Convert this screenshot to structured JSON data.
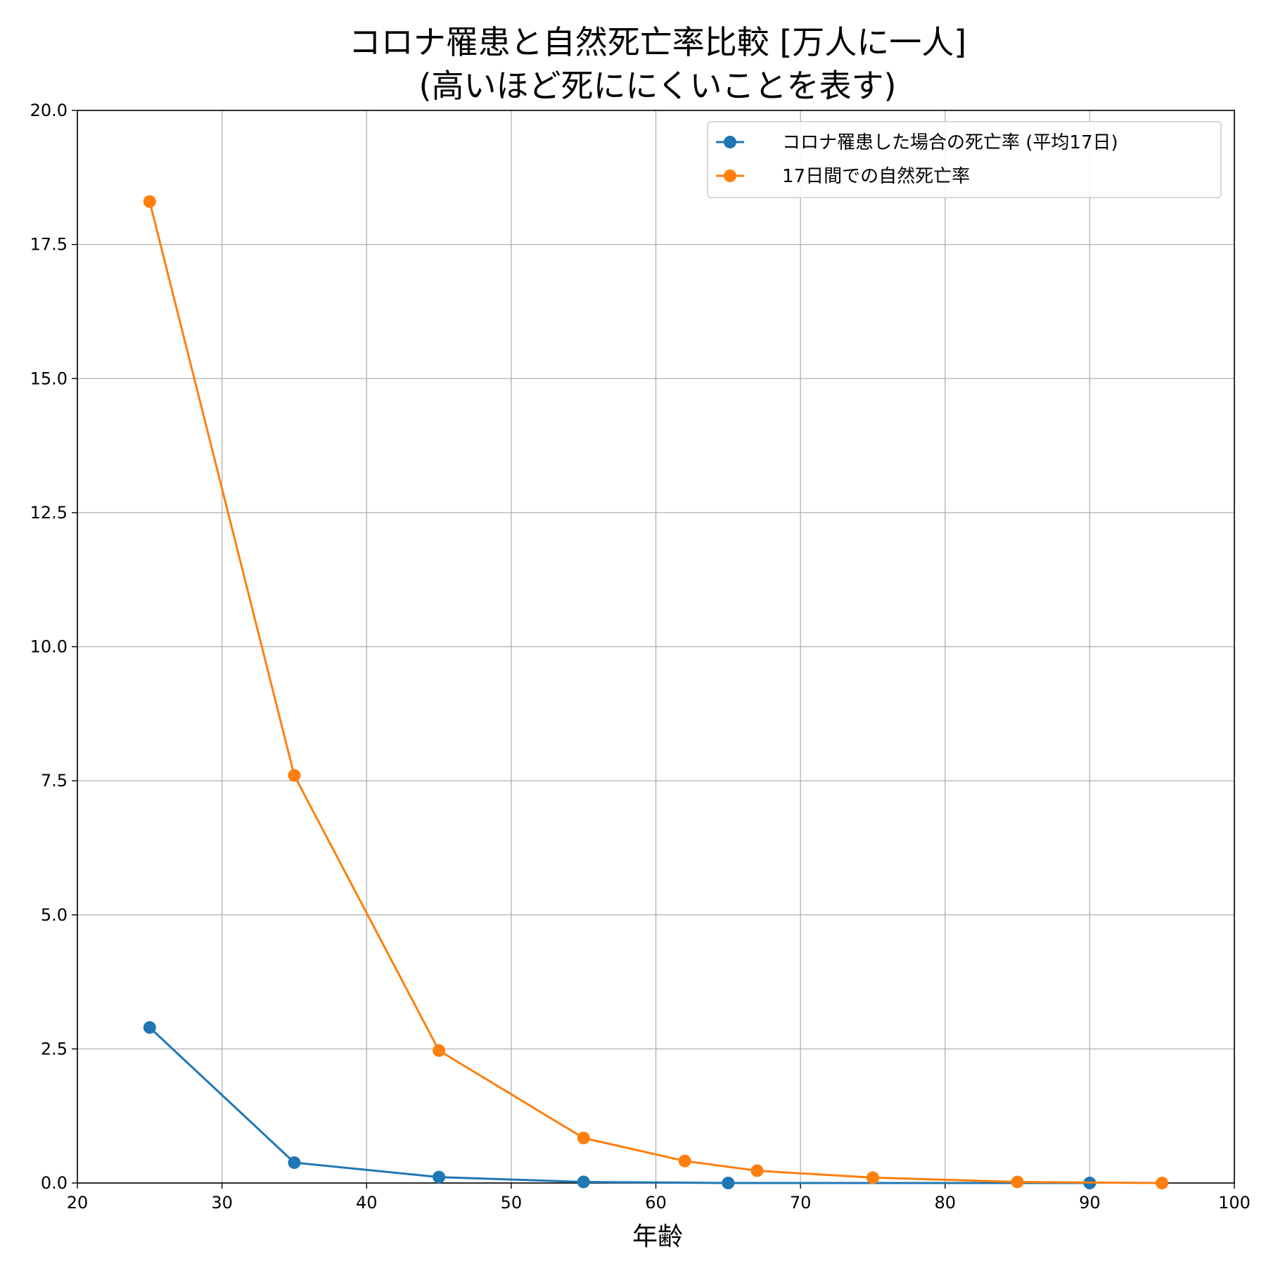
{
  "chart_data": {
    "type": "line",
    "title_lines": [
      "コロナ罹患と自然死亡率比較 [万人に一人]",
      "(高いほど死ににくいことを表す)"
    ],
    "xlabel": "年齢",
    "ylabel": "",
    "xlim": [
      20,
      100
    ],
    "ylim": [
      0,
      20
    ],
    "xticks": [
      "20",
      "30",
      "40",
      "50",
      "60",
      "70",
      "80",
      "90",
      "100"
    ],
    "yticks": [
      "0.0",
      "2.5",
      "5.0",
      "7.5",
      "10.0",
      "12.5",
      "15.0",
      "17.5",
      "20.0"
    ],
    "grid": true,
    "legend_position": "top-right",
    "series": [
      {
        "name": "コロナ罹患した場合の死亡率 (平均17日)",
        "color": "#1f77b4",
        "x": [
          25,
          35,
          45,
          55,
          65,
          90
        ],
        "y": [
          2.9,
          0.38,
          0.11,
          0.02,
          0.0,
          0.0
        ]
      },
      {
        "name": "17日間での自然死亡率",
        "color": "#ff7f0e",
        "x": [
          25,
          35,
          45,
          55,
          62,
          67,
          75,
          85,
          95
        ],
        "y": [
          18.3,
          7.6,
          2.47,
          0.84,
          0.41,
          0.23,
          0.1,
          0.02,
          0.0
        ]
      }
    ]
  }
}
